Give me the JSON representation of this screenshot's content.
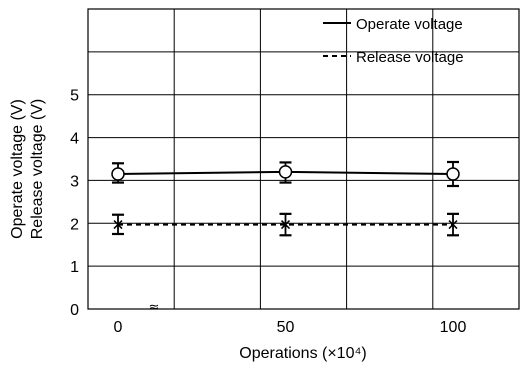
{
  "chart_data": {
    "type": "line",
    "title": "",
    "xlabel": "Operations (×10⁴)",
    "ylabel": [
      "Operate voltage (V)",
      "Release voltage (V)"
    ],
    "x": [
      0,
      50,
      100
    ],
    "x_ticks": [
      "0",
      "50",
      "100"
    ],
    "x_break_marker": "≈",
    "y_ticks": [
      "0",
      "1",
      "2",
      "3",
      "4",
      "5"
    ],
    "ylim": [
      0,
      7
    ],
    "grid": true,
    "legend_position": "top-right",
    "series": [
      {
        "name": "Operate voltage",
        "line_style": "solid",
        "marker": "circle",
        "values": [
          3.15,
          3.2,
          3.15
        ],
        "min": [
          2.95,
          2.95,
          2.87
        ],
        "max": [
          3.4,
          3.42,
          3.43
        ]
      },
      {
        "name": "Release voltage",
        "line_style": "dashed",
        "marker": "x",
        "values": [
          1.97,
          1.97,
          1.97
        ],
        "min": [
          1.75,
          1.72,
          1.72
        ],
        "max": [
          2.2,
          2.22,
          2.22
        ]
      }
    ],
    "colors": {
      "line": "#000000",
      "grid": "#000000",
      "background": "#ffffff"
    }
  }
}
